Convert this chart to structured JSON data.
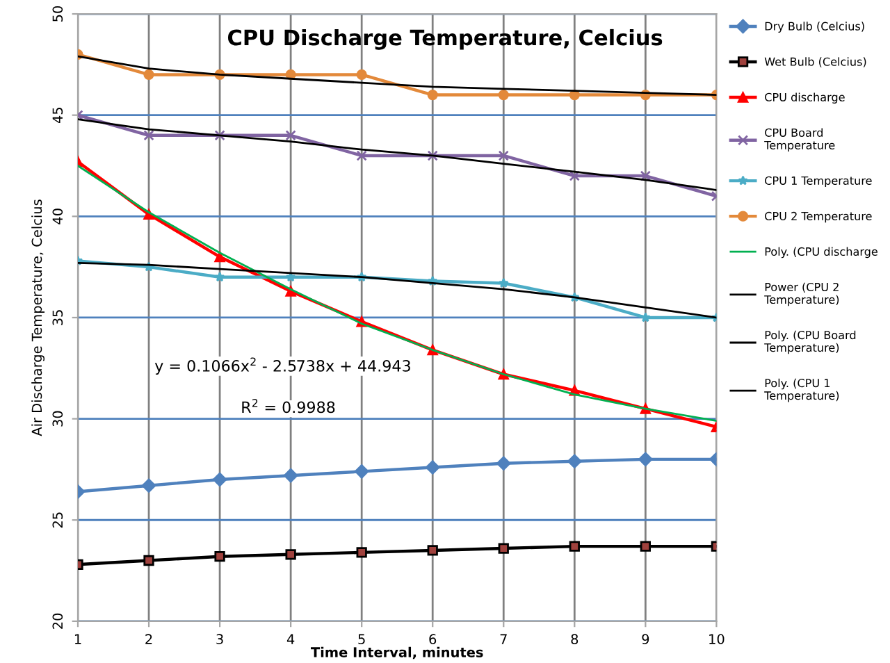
{
  "chart_data": {
    "type": "line",
    "title": "CPU Discharge Temperature, Celcius",
    "xlabel": "Time Interval, minutes",
    "ylabel": "Air Discharge Temperature, Celcius",
    "x": [
      1,
      2,
      3,
      4,
      5,
      6,
      7,
      8,
      9,
      10
    ],
    "xlim": [
      1,
      10
    ],
    "xticks": [
      1,
      2,
      3,
      4,
      5,
      6,
      7,
      8,
      9,
      10
    ],
    "ylim": [
      20,
      50
    ],
    "yticks": [
      20,
      25,
      30,
      35,
      40,
      45,
      50
    ],
    "grid": true,
    "legend": "right",
    "line_style": "solid",
    "annotations": [
      "y = 0.1066x$^{2}$ - 2.5738x + 44.943",
      "R$^{2}$ = 0.9988"
    ],
    "series": [
      {
        "name": "Dry Bulb (Celcius)",
        "color": "#4f81bd",
        "marker": "diamond",
        "values": [
          26.4,
          26.7,
          27.0,
          27.2,
          27.4,
          27.6,
          27.8,
          27.9,
          28.0,
          28.0
        ]
      },
      {
        "name": "Wet Bulb (Celcius)",
        "color": "#000000",
        "marker": "square",
        "values": [
          22.8,
          23.0,
          23.2,
          23.3,
          23.4,
          23.5,
          23.6,
          23.7,
          23.7,
          23.7
        ]
      },
      {
        "name": "CPU discharge",
        "color": "#ff0000",
        "marker": "triangle",
        "values": [
          42.7,
          40.1,
          38.0,
          36.3,
          34.8,
          33.4,
          32.2,
          31.4,
          30.5,
          29.6
        ]
      },
      {
        "name": "CPU Board\nTemperature",
        "color": "#8064a2",
        "marker": "cross",
        "values": [
          45,
          44,
          44,
          44,
          43,
          43,
          43,
          42,
          42,
          41
        ]
      },
      {
        "name": "CPU 1 Temperature",
        "color": "#4bacc6",
        "marker": "star",
        "values": [
          37.8,
          37.5,
          37.0,
          37.0,
          37.0,
          36.8,
          36.7,
          36.0,
          35.0,
          35.0
        ]
      },
      {
        "name": "CPU 2 Temperature",
        "color": "#e3893a",
        "marker": "circle",
        "values": [
          48,
          47,
          47,
          47,
          47,
          46,
          46,
          46,
          46,
          46
        ]
      },
      {
        "name": "Poly. (CPU discharge",
        "color": "#00b050",
        "marker": "none",
        "values": [
          42.5,
          40.2,
          38.2,
          36.4,
          34.7,
          33.4,
          32.2,
          31.2,
          30.5,
          29.9
        ]
      },
      {
        "name": "Power (CPU 2\nTemperature)",
        "color": "#000000",
        "marker": "none",
        "values": [
          47.9,
          47.3,
          47.0,
          46.8,
          46.6,
          46.4,
          46.3,
          46.2,
          46.1,
          46.0
        ]
      },
      {
        "name": "Poly. (CPU Board\nTemperature)",
        "color": "#000000",
        "marker": "none",
        "values": [
          44.8,
          44.3,
          44.0,
          43.7,
          43.3,
          43.0,
          42.6,
          42.2,
          41.8,
          41.3
        ]
      },
      {
        "name": "Poly. (CPU 1\nTemperature)",
        "color": "#000000",
        "marker": "none",
        "values": [
          37.7,
          37.6,
          37.4,
          37.2,
          37.0,
          36.7,
          36.4,
          36.0,
          35.5,
          35.0
        ]
      }
    ]
  }
}
